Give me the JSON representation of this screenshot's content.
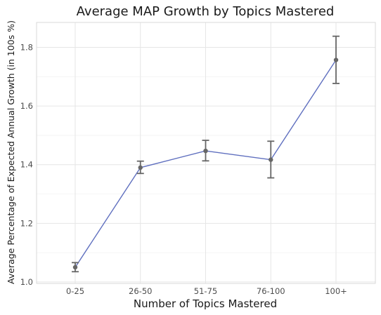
{
  "chart_data": {
    "type": "line",
    "title": "Average MAP Growth by Topics Mastered",
    "xlabel": "Number of Topics Mastered",
    "ylabel": "Average Percentage of Expected Annual Growth (in 100s %)",
    "categories": [
      "0-25",
      "26-50",
      "51-75",
      "76-100",
      "100+"
    ],
    "series": [
      {
        "values": [
          1.05,
          1.39,
          1.447,
          1.417,
          1.757
        ],
        "error_low": [
          1.035,
          1.37,
          1.413,
          1.355,
          1.677
        ],
        "error_high": [
          1.066,
          1.412,
          1.483,
          1.48,
          1.838
        ]
      }
    ],
    "ylim": [
      0.995,
      1.885
    ],
    "yticks": [
      1.0,
      1.2,
      1.4,
      1.6,
      1.8
    ],
    "ytick_labels": [
      "1.0",
      "1.2",
      "1.4",
      "1.6",
      "1.8"
    ],
    "grid": true,
    "legend": "none",
    "colors": {
      "line": "#5f6fbf",
      "point": "#666666",
      "errorbar": "#666666",
      "grid": "#e6e6e6",
      "panel_border": "#d9d9d9"
    }
  }
}
